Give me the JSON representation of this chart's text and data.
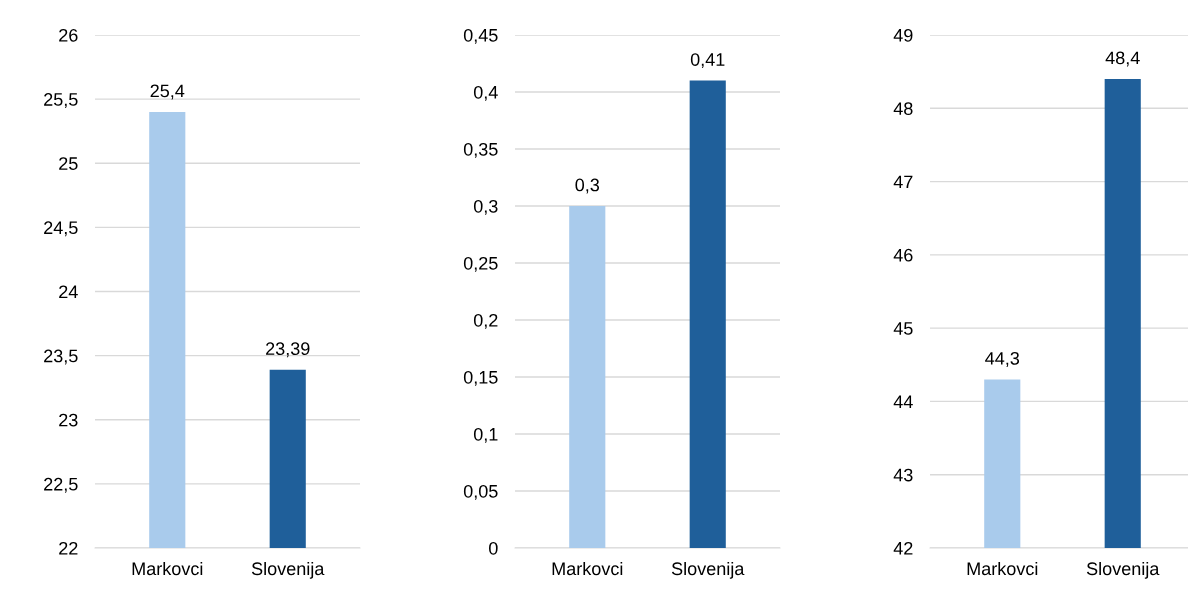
{
  "chart_data": [
    {
      "type": "bar",
      "categories": [
        "Markovci",
        "Slovenija"
      ],
      "values": [
        25.4,
        23.39
      ],
      "colors": [
        "#a9cbec",
        "#1f5f9a"
      ],
      "value_labels": [
        "25,4",
        "23,39"
      ],
      "ylim": [
        22,
        26
      ],
      "yticks": [
        22,
        {
          "value": 22.5,
          "label": "22,5"
        },
        23,
        {
          "value": 23.5,
          "label": "23,5"
        },
        24,
        {
          "value": 24.5,
          "label": "24,5"
        },
        25,
        {
          "value": 25.5,
          "label": "25,5"
        },
        26
      ],
      "grid": "y"
    },
    {
      "type": "bar",
      "categories": [
        "Markovci",
        "Slovenija"
      ],
      "values": [
        0.3,
        0.41
      ],
      "colors": [
        "#a9cbec",
        "#1f5f9a"
      ],
      "value_labels": [
        "0,3",
        "0,41"
      ],
      "ylim": [
        0,
        0.45
      ],
      "yticks": [
        0,
        {
          "value": 0.05,
          "label": "0,05"
        },
        {
          "value": 0.1,
          "label": "0,1"
        },
        {
          "value": 0.15,
          "label": "0,15"
        },
        {
          "value": 0.2,
          "label": "0,2"
        },
        {
          "value": 0.25,
          "label": "0,25"
        },
        {
          "value": 0.3,
          "label": "0,3"
        },
        {
          "value": 0.35,
          "label": "0,35"
        },
        {
          "value": 0.4,
          "label": "0,4"
        },
        {
          "value": 0.45,
          "label": "0,45"
        }
      ],
      "grid": "y"
    },
    {
      "type": "bar",
      "categories": [
        "Markovci",
        "Slovenija"
      ],
      "values": [
        44.3,
        48.4
      ],
      "colors": [
        "#a9cbec",
        "#1f5f9a"
      ],
      "value_labels": [
        "44,3",
        "48,4"
      ],
      "ylim": [
        42,
        49
      ],
      "yticks": [
        42,
        43,
        44,
        45,
        46,
        47,
        48,
        49
      ],
      "grid": "y"
    }
  ]
}
